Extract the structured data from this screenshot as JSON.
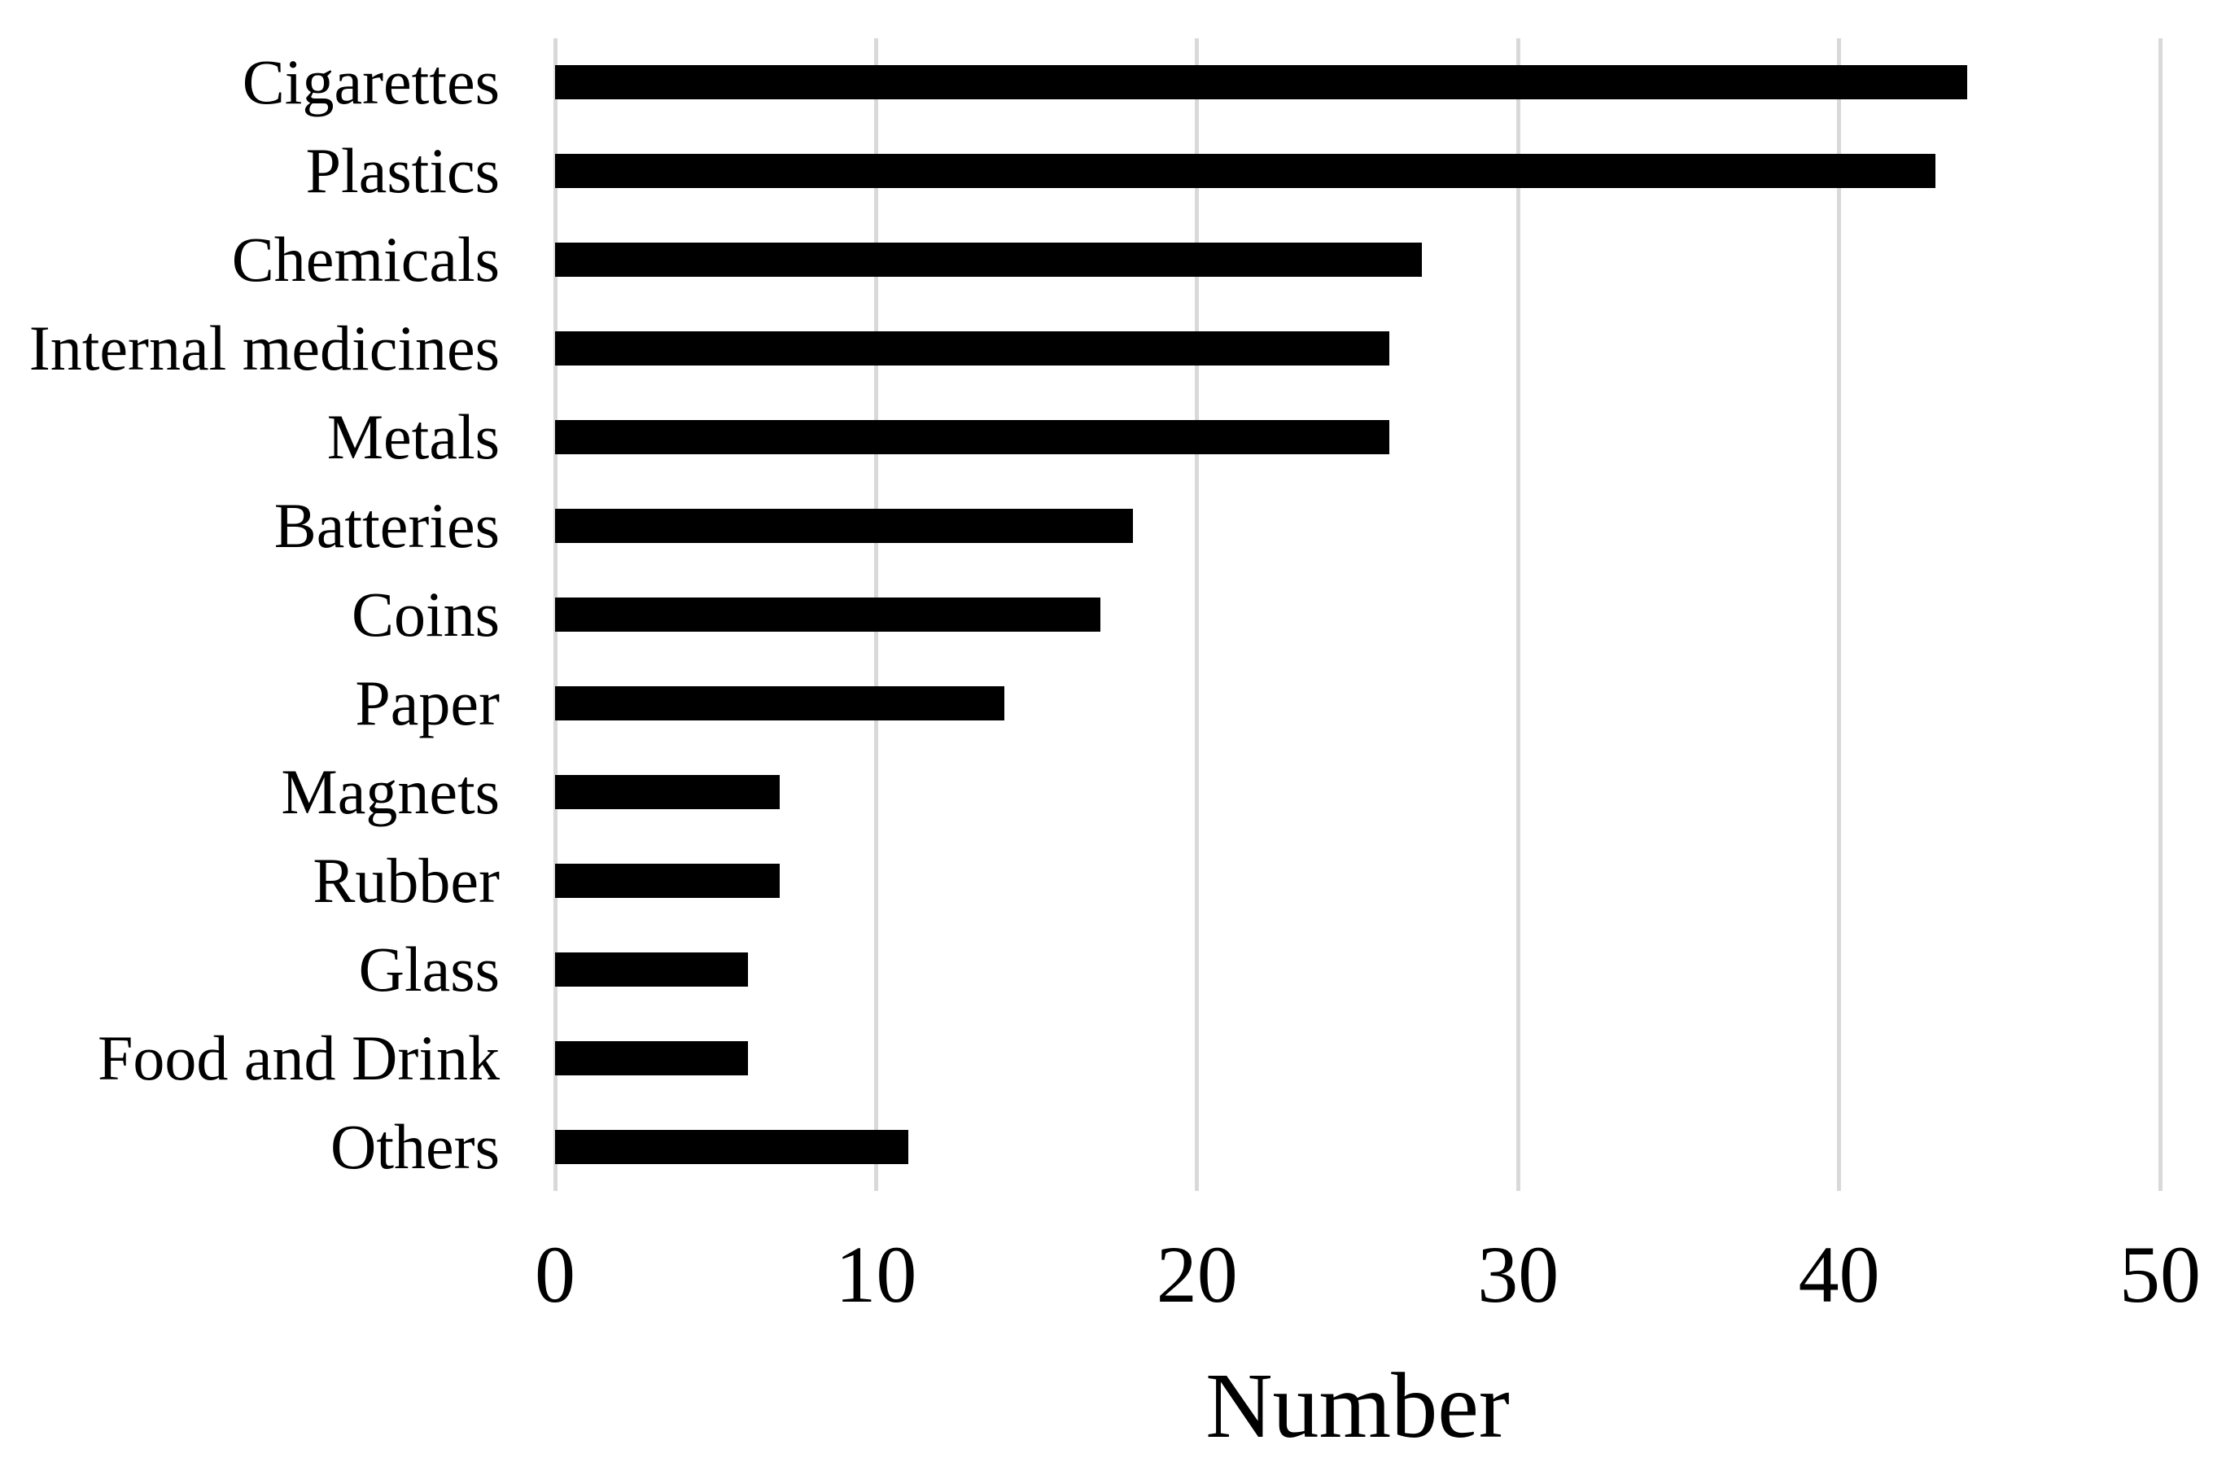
{
  "chart_data": {
    "type": "bar",
    "orientation": "horizontal",
    "title": "",
    "xlabel": "Number",
    "ylabel": "",
    "categories": [
      "Cigarettes",
      "Plastics",
      "Chemicals",
      "Internal medicines",
      "Metals",
      "Batteries",
      "Coins",
      "Paper",
      "Magnets",
      "Rubber",
      "Glass",
      "Food and Drink",
      "Others"
    ],
    "values": [
      44,
      43,
      27,
      26,
      26,
      18,
      17,
      14,
      7,
      7,
      6,
      6,
      11
    ],
    "xlim": [
      0,
      50
    ],
    "xticks": [
      0,
      10,
      20,
      30,
      40,
      50
    ],
    "grid": true,
    "legend": false,
    "bar_color": "#000000",
    "gridline_color": "#d9d9d9",
    "background_color": "#ffffff",
    "text_color": "#000000"
  }
}
